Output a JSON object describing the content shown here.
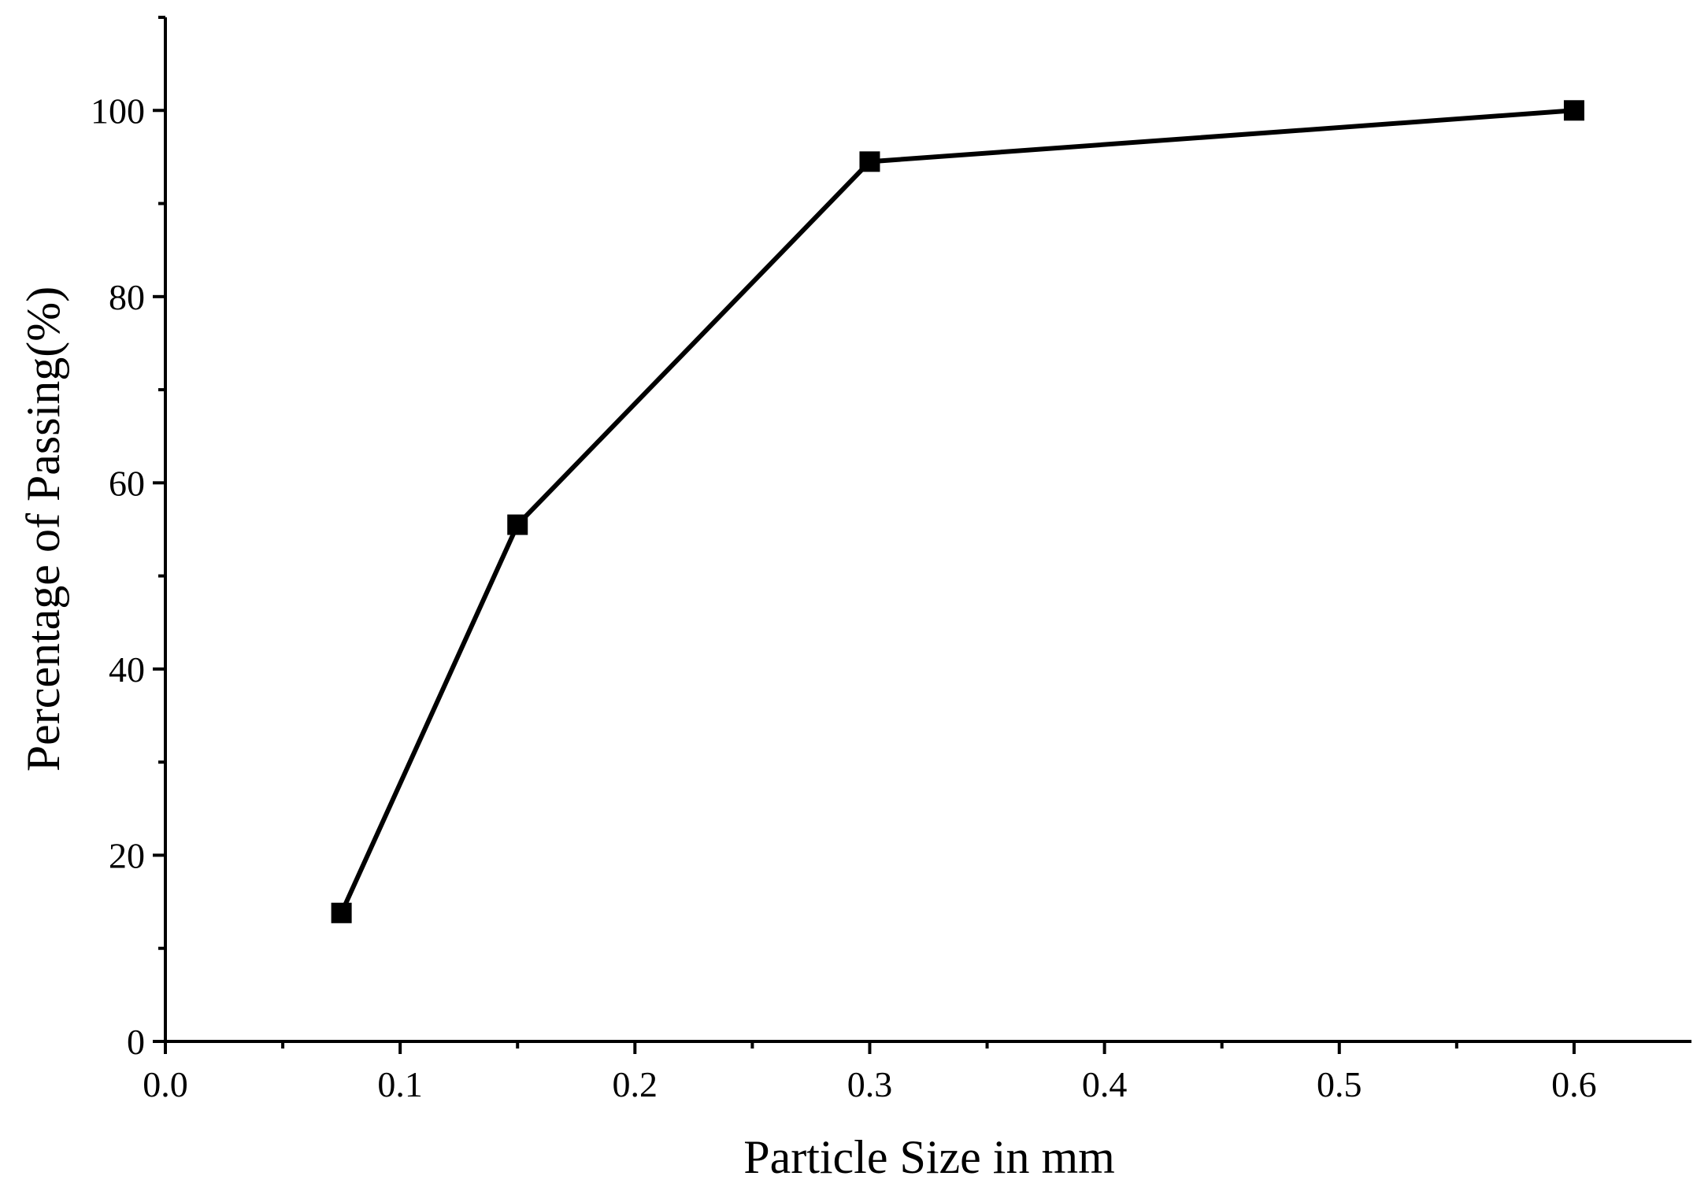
{
  "chart_data": {
    "type": "line",
    "title": "",
    "xlabel": "Particle Size in mm",
    "ylabel": "Percentage of Passing(%)",
    "xlim": [
      0.0,
      0.65
    ],
    "ylim": [
      0,
      110
    ],
    "x_ticks": [
      "0.0",
      "0.1",
      "0.2",
      "0.3",
      "0.4",
      "0.5",
      "0.6"
    ],
    "y_ticks": [
      "0",
      "20",
      "40",
      "60",
      "80",
      "100"
    ],
    "grid": false,
    "legend": "none",
    "marker": "square",
    "line_color": "#000000",
    "series": [
      {
        "x": [
          0.075,
          0.15,
          0.3,
          0.6
        ],
        "y": [
          13.8,
          55.5,
          94.5,
          100
        ]
      }
    ]
  }
}
